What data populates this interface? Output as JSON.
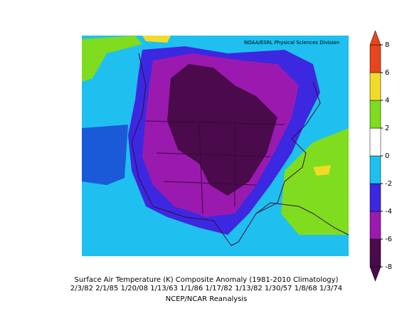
{
  "header": {
    "source": "NOAA/ESRL Physical Sciences Division"
  },
  "footer": {
    "title": "Surface Air Temperature (K) Composite Anomaly (1981-2010 Climatology)",
    "dates": "2/3/82 2/1/85 1/20/08 1/13/63 1/1/86 1/17/82 1/13/82 1/30/57 1/8/68 1/3/74",
    "source": "NCEP/NCAR Reanalysis"
  },
  "colorbar": {
    "ticks": [
      -8,
      -6,
      -4,
      -2,
      0,
      2,
      4,
      6,
      8
    ],
    "colors": [
      "#4b0a4b",
      "#9a1ab0",
      "#3c28e0",
      "#1fc0f0",
      "#ffffff",
      "#80dc1e",
      "#f0dc28",
      "#e8461e"
    ]
  }
}
